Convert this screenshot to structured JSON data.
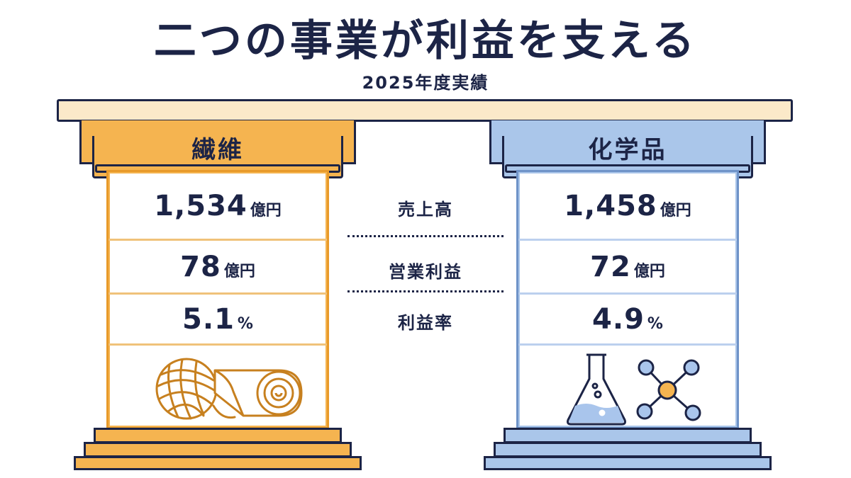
{
  "title": "二つの事業が利益を支える",
  "subtitle": "2025年度実績",
  "row_labels": [
    "売上高",
    "営業利益",
    "利益率"
  ],
  "segments": [
    {
      "name": "繊維",
      "sales": {
        "value": "1,534",
        "unit": "億円"
      },
      "operating_profit": {
        "value": "78",
        "unit": "億円"
      },
      "margin": {
        "value": "5.1",
        "unit": "%"
      },
      "color": "#f5b450",
      "icons": [
        "yarn-ball-icon",
        "fabric-roll-icon"
      ]
    },
    {
      "name": "化学品",
      "sales": {
        "value": "1,458",
        "unit": "億円"
      },
      "operating_profit": {
        "value": "72",
        "unit": "億円"
      },
      "margin": {
        "value": "4.9",
        "unit": "%"
      },
      "color": "#aac6ea",
      "icons": [
        "flask-icon",
        "molecule-icon"
      ]
    }
  ],
  "colors": {
    "navy": "#1c2446",
    "roof": "#fbe9c9",
    "orange": "#f5b450",
    "blue": "#aac6ea"
  }
}
